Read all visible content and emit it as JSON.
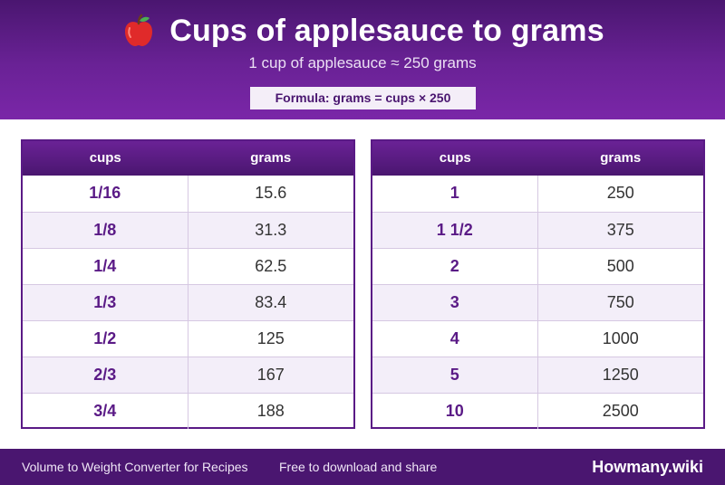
{
  "header": {
    "icon": "apple-icon",
    "title": "Cups of applesauce to grams",
    "subtitle": "1 cup of applesauce ≈ 250 grams",
    "formula": "Formula: grams = cups × 250"
  },
  "tables": [
    {
      "headers": {
        "cups": "cups",
        "grams": "grams"
      },
      "rows": [
        {
          "cups": "1/16",
          "grams": "15.6"
        },
        {
          "cups": "1/8",
          "grams": "31.3"
        },
        {
          "cups": "1/4",
          "grams": "62.5"
        },
        {
          "cups": "1/3",
          "grams": "83.4"
        },
        {
          "cups": "1/2",
          "grams": "125"
        },
        {
          "cups": "2/3",
          "grams": "167"
        },
        {
          "cups": "3/4",
          "grams": "188"
        }
      ]
    },
    {
      "headers": {
        "cups": "cups",
        "grams": "grams"
      },
      "rows": [
        {
          "cups": "1",
          "grams": "250"
        },
        {
          "cups": "1 1/2",
          "grams": "375"
        },
        {
          "cups": "2",
          "grams": "500"
        },
        {
          "cups": "3",
          "grams": "750"
        },
        {
          "cups": "4",
          "grams": "1000"
        },
        {
          "cups": "5",
          "grams": "1250"
        },
        {
          "cups": "10",
          "grams": "2500"
        }
      ]
    }
  ],
  "footer": {
    "left_text": "Volume to Weight Converter for Recipes",
    "mid_text": "Free to download and share",
    "brand": "Howmany.wiki"
  },
  "colors": {
    "primary": "#4a1670",
    "accent": "#6a2296",
    "row_alt": "#f3eef9"
  }
}
